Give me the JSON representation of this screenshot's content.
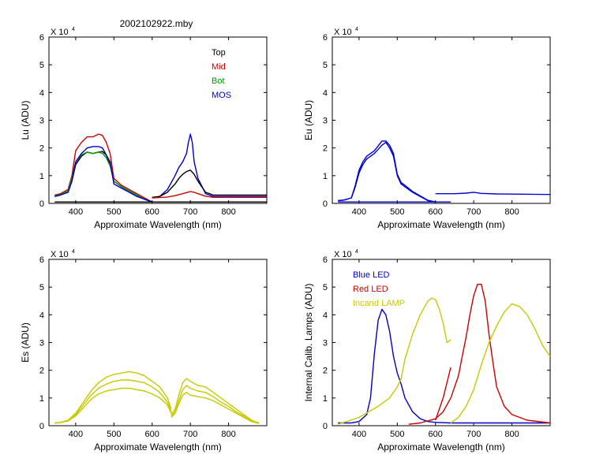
{
  "figure_title": "2002102922.mby",
  "colors": {
    "black": "#000000",
    "red": "#cc0000",
    "green": "#009900",
    "blue": "#0000cc",
    "yellow": "#c8c800"
  },
  "chart_data": [
    {
      "id": "lu",
      "type": "line",
      "ylabel": "Lu (ADU)",
      "xlabel": "Approximate Wavelength (nm)",
      "exponent_label": "X 10",
      "exponent": "4",
      "xlim": [
        330,
        900
      ],
      "ylim": [
        0,
        60000
      ],
      "xticks": [
        400,
        500,
        600,
        700,
        800
      ],
      "yticks": [
        0,
        1,
        2,
        3,
        4,
        5,
        6
      ],
      "legend": [
        {
          "label": "Top",
          "color": "#000000"
        },
        {
          "label": "Mid",
          "color": "#cc0000"
        },
        {
          "label": "Bot",
          "color": "#009900"
        },
        {
          "label": "MOS",
          "color": "#0000cc"
        }
      ],
      "series": [
        {
          "name": "Top",
          "color": "#000000",
          "x": [
            345,
            360,
            380,
            390,
            400,
            415,
            430,
            445,
            460,
            470,
            480,
            490,
            500,
            520,
            540,
            560,
            580,
            600
          ],
          "y": [
            2500,
            3000,
            4000,
            8000,
            14000,
            17000,
            18500,
            18000,
            18500,
            18700,
            17500,
            14000,
            8000,
            6000,
            4500,
            3000,
            1500,
            500
          ]
        },
        {
          "name": "Mid",
          "color": "#cc0000",
          "x": [
            345,
            360,
            380,
            390,
            400,
            415,
            430,
            445,
            460,
            470,
            480,
            490,
            500,
            520,
            540,
            560,
            580,
            600
          ],
          "y": [
            3000,
            3500,
            5000,
            10000,
            19000,
            22000,
            24000,
            24000,
            25000,
            24500,
            22000,
            18000,
            9000,
            6500,
            5000,
            3500,
            2000,
            500
          ]
        },
        {
          "name": "Bot",
          "color": "#009900",
          "x": [
            345,
            360,
            380,
            390,
            400,
            415,
            430,
            445,
            460,
            470,
            480,
            490,
            500,
            520,
            540,
            560,
            580,
            600
          ],
          "y": [
            2800,
            3200,
            4500,
            9000,
            15000,
            17500,
            18500,
            18000,
            18500,
            18000,
            16500,
            13500,
            8000,
            6000,
            4500,
            3000,
            1500,
            500
          ]
        },
        {
          "name": "MOS",
          "color": "#0000cc",
          "x": [
            345,
            360,
            380,
            390,
            400,
            415,
            430,
            445,
            460,
            470,
            480,
            490,
            500,
            520,
            540,
            560,
            580,
            600
          ],
          "y": [
            2500,
            3000,
            4000,
            8000,
            15000,
            18000,
            20000,
            20500,
            20500,
            20000,
            17500,
            15000,
            7000,
            5500,
            4000,
            2500,
            1500,
            500
          ]
        },
        {
          "name": "MOS",
          "color": "#0000cc",
          "x": [
            600,
            620,
            640,
            660,
            670,
            680,
            690,
            695,
            700,
            705,
            710,
            720,
            740,
            760,
            800,
            900
          ],
          "y": [
            2000,
            2500,
            5000,
            10000,
            13000,
            15000,
            18000,
            22000,
            25000,
            22000,
            15000,
            9000,
            3500,
            2500,
            2500,
            2500
          ]
        },
        {
          "name": "Top",
          "color": "#000000",
          "x": [
            600,
            620,
            640,
            660,
            670,
            680,
            690,
            700,
            710,
            720,
            740,
            760,
            800,
            900
          ],
          "y": [
            2200,
            2500,
            4000,
            7000,
            9000,
            10500,
            11500,
            12000,
            10500,
            8000,
            4000,
            3000,
            3000,
            3000
          ]
        },
        {
          "name": "Mid",
          "color": "#cc0000",
          "x": [
            600,
            620,
            640,
            660,
            680,
            700,
            710,
            720,
            740,
            760,
            900
          ],
          "y": [
            2000,
            2100,
            2300,
            2800,
            3500,
            4300,
            4000,
            3500,
            2600,
            2200,
            2200
          ]
        },
        {
          "name": "Top",
          "color": "#000000",
          "x": [
            345,
            900
          ],
          "y": [
            500,
            500
          ]
        }
      ]
    },
    {
      "id": "eu",
      "type": "line",
      "ylabel": "Eu  (ADU)",
      "xlabel": "Approximate Wavelength (nm)",
      "exponent_label": "X 10",
      "exponent": "4",
      "xlim": [
        330,
        900
      ],
      "ylim": [
        0,
        60000
      ],
      "xticks": [
        400,
        500,
        600,
        700,
        800
      ],
      "yticks": [
        0,
        1,
        2,
        3,
        4,
        5,
        6
      ],
      "series": [
        {
          "name": "Eu",
          "color": "#0000cc",
          "x": [
            345,
            360,
            380,
            390,
            400,
            410,
            420,
            440,
            460,
            470,
            480,
            490,
            500,
            510,
            520,
            540,
            560,
            580,
            600
          ],
          "y": [
            1000,
            1200,
            2000,
            6000,
            11000,
            14000,
            16000,
            18000,
            21000,
            22000,
            20000,
            17000,
            10000,
            7000,
            6000,
            4000,
            2500,
            1000,
            500
          ]
        },
        {
          "name": "Eu",
          "color": "#0000cc",
          "x": [
            345,
            360,
            380,
            390,
            400,
            410,
            420,
            440,
            460,
            470,
            480,
            490,
            500,
            510,
            520,
            540,
            560,
            580,
            600
          ],
          "y": [
            1000,
            1200,
            2000,
            6500,
            12000,
            15000,
            17000,
            19000,
            22500,
            22500,
            21000,
            18000,
            10500,
            7500,
            6500,
            4300,
            2700,
            1100,
            500
          ]
        },
        {
          "name": "Eu",
          "color": "#0000cc",
          "x": [
            345,
            640
          ],
          "y": [
            500,
            500
          ]
        },
        {
          "name": "Eu",
          "color": "#0000cc",
          "x": [
            600,
            650,
            680,
            700,
            720,
            760,
            900
          ],
          "y": [
            3500,
            3500,
            3700,
            4000,
            3600,
            3400,
            3200
          ]
        }
      ]
    },
    {
      "id": "es",
      "type": "line",
      "ylabel": "Es  (ADU)",
      "xlabel": "Approximate Wavelength (nm)",
      "exponent_label": "X 10",
      "exponent": "4",
      "xlim": [
        330,
        900
      ],
      "ylim": [
        0,
        60000
      ],
      "xticks": [
        400,
        500,
        600,
        700,
        800
      ],
      "yticks": [
        0,
        1,
        2,
        3,
        4,
        5,
        6
      ],
      "series": [
        {
          "name": "Es",
          "color": "#c8c800",
          "x": [
            345,
            360,
            380,
            400,
            420,
            440,
            460,
            480,
            500,
            520,
            540,
            560,
            580,
            600,
            620,
            640,
            650
          ],
          "y": [
            1000,
            1200,
            2000,
            4500,
            8500,
            12500,
            15500,
            17500,
            18500,
            19000,
            19500,
            19000,
            18000,
            16000,
            14000,
            10000,
            6000
          ]
        },
        {
          "name": "Es",
          "color": "#c8c800",
          "x": [
            345,
            360,
            380,
            400,
            420,
            440,
            460,
            480,
            500,
            520,
            540,
            560,
            580,
            600,
            620,
            640,
            650
          ],
          "y": [
            1000,
            1100,
            1800,
            4000,
            7500,
            11000,
            13500,
            15000,
            16000,
            16500,
            16500,
            16000,
            15500,
            14000,
            12000,
            8500,
            5000
          ]
        },
        {
          "name": "Es",
          "color": "#c8c800",
          "x": [
            345,
            360,
            380,
            400,
            420,
            440,
            460,
            480,
            500,
            520,
            540,
            560,
            580,
            600,
            620,
            640,
            650
          ],
          "y": [
            1000,
            1100,
            1700,
            3500,
            6500,
            9500,
            11500,
            12500,
            13000,
            13500,
            13500,
            13000,
            12500,
            11500,
            10000,
            7500,
            4500
          ]
        },
        {
          "name": "Es",
          "color": "#c8c800",
          "x": [
            650,
            660,
            670,
            680,
            690,
            700,
            720,
            740,
            760,
            780,
            800,
            820,
            840,
            860,
            880
          ],
          "y": [
            4000,
            6000,
            11000,
            15500,
            17000,
            16000,
            14500,
            14000,
            12000,
            10000,
            8000,
            6000,
            4000,
            2000,
            1000
          ]
        },
        {
          "name": "Es",
          "color": "#c8c800",
          "x": [
            650,
            660,
            670,
            680,
            690,
            700,
            720,
            740,
            760,
            780,
            800,
            820,
            840,
            860,
            880
          ],
          "y": [
            3500,
            5000,
            9000,
            13000,
            14500,
            13500,
            12500,
            12000,
            10500,
            8500,
            7000,
            5000,
            3500,
            1800,
            900
          ]
        },
        {
          "name": "Es",
          "color": "#c8c800",
          "x": [
            650,
            660,
            670,
            680,
            690,
            700,
            720,
            740,
            760,
            780,
            800,
            820,
            840,
            860,
            880
          ],
          "y": [
            3000,
            4500,
            8000,
            11000,
            12000,
            11000,
            10500,
            10000,
            9000,
            7500,
            6000,
            4500,
            3000,
            1500,
            800
          ]
        }
      ]
    },
    {
      "id": "lamps",
      "type": "line",
      "ylabel": "Internal Calib. Lamps (ADU)",
      "xlabel": "Approximate Wavelength (nm)",
      "exponent_label": "X 10",
      "exponent": "4",
      "xlim": [
        330,
        900
      ],
      "ylim": [
        0,
        60000
      ],
      "xticks": [
        400,
        500,
        600,
        700,
        800
      ],
      "yticks": [
        0,
        1,
        2,
        3,
        4,
        5,
        6
      ],
      "legend": [
        {
          "label": "Blue LED",
          "color": "#0000cc"
        },
        {
          "label": "Red LED",
          "color": "#cc0000"
        },
        {
          "label": "Incand LAMP",
          "color": "#c8c800"
        }
      ],
      "series": [
        {
          "name": "Blue LED",
          "color": "#0000cc",
          "x": [
            345,
            380,
            400,
            420,
            430,
            440,
            450,
            460,
            470,
            480,
            490,
            500,
            510,
            520,
            540,
            560,
            580,
            600,
            640,
            700,
            800,
            900
          ],
          "y": [
            1000,
            1000,
            1500,
            4000,
            10000,
            26000,
            38000,
            42000,
            40000,
            34000,
            25000,
            19000,
            15000,
            10000,
            5000,
            2500,
            1500,
            1200,
            1000,
            1000,
            1000,
            1000
          ]
        },
        {
          "name": "Red LED",
          "color": "#cc0000",
          "x": [
            530,
            560,
            600,
            620,
            640,
            660,
            670,
            680,
            690,
            700,
            710,
            720,
            730,
            740,
            750,
            760,
            780,
            800,
            840,
            900
          ],
          "y": [
            500,
            1000,
            2500,
            5000,
            10000,
            18000,
            25000,
            32000,
            40000,
            47000,
            51000,
            51000,
            45000,
            33000,
            23000,
            14000,
            7000,
            4000,
            2000,
            1000
          ]
        },
        {
          "name": "Red LED",
          "color": "#cc0000",
          "x": [
            600,
            620,
            640
          ],
          "y": [
            2000,
            10000,
            21000
          ]
        },
        {
          "name": "Incand LAMP",
          "color": "#c8c800",
          "x": [
            345,
            400,
            450,
            480,
            500,
            510,
            520,
            540,
            560,
            580,
            590,
            600,
            610,
            620,
            630,
            640
          ],
          "y": [
            500,
            3000,
            7000,
            10000,
            14000,
            17000,
            24000,
            33000,
            40000,
            45000,
            46000,
            45500,
            42000,
            37000,
            30000,
            31000
          ]
        },
        {
          "name": "Incand LAMP",
          "color": "#c8c800",
          "x": [
            640,
            660,
            680,
            700,
            720,
            740,
            760,
            780,
            800,
            820,
            840,
            860,
            880,
            900
          ],
          "y": [
            1000,
            3000,
            7000,
            13000,
            22000,
            30000,
            36000,
            41000,
            44000,
            43000,
            40000,
            35000,
            29000,
            25000
          ]
        }
      ]
    }
  ]
}
